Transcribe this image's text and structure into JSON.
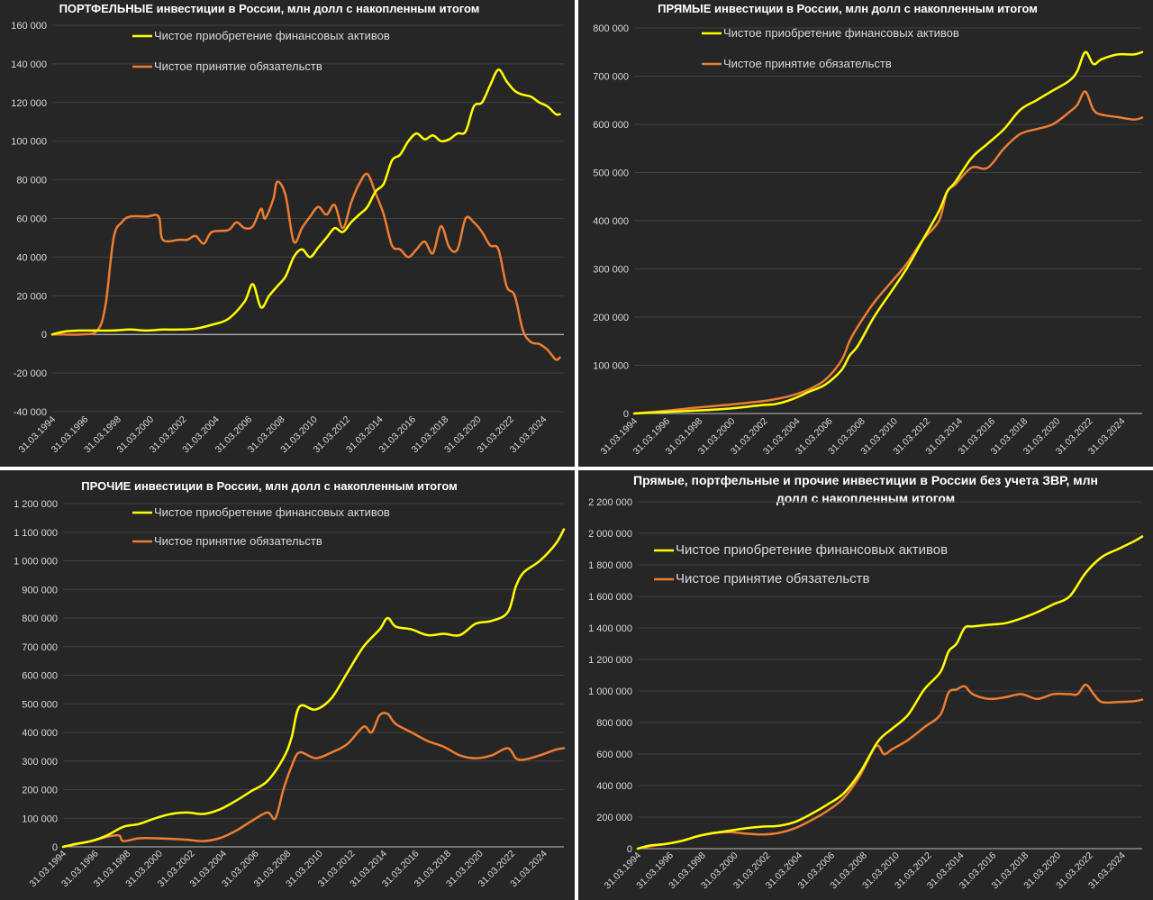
{
  "colors": {
    "background": "#262626",
    "assets_line": "#ffff00",
    "liabilities_line": "#ed7d31",
    "grid": "#404040",
    "axis_text": "#d9d9d9"
  },
  "legend": {
    "assets": "Чистое приобретение финансовых активов",
    "liabilities": "Чистое принятие обязательств"
  },
  "x_tick_labels": [
    "31.03.1994",
    "31.03.1996",
    "31.03.1998",
    "31.03.2000",
    "31.03.2002",
    "31.03.2004",
    "31.03.2006",
    "31.03.2008",
    "31.03.2010",
    "31.03.2012",
    "31.03.2014",
    "31.03.2016",
    "31.03.2018",
    "31.03.2020",
    "31.03.2022",
    "31.03.2024"
  ],
  "chart_data": [
    {
      "type": "line",
      "title": "ПОРТФЕЛЬНЫЕ инвестиции в России, млн долл с накопленным итогом",
      "y_ticks": [
        "-40 000",
        "-20 000",
        "0",
        "20 000",
        "40 000",
        "60 000",
        "80 000",
        "100 000",
        "120 000",
        "140 000",
        "160 000"
      ],
      "ylim": [
        -40000,
        160000
      ],
      "xlim": [
        1994.25,
        2025.5
      ],
      "legend_position": "top",
      "series": [
        {
          "name": "Чистое приобретение финансовых активов",
          "x": [
            1994.25,
            1995,
            1996,
            1997,
            1998,
            1999,
            2000,
            2001,
            2002,
            2003,
            2004,
            2005,
            2006,
            2006.5,
            2007,
            2007.5,
            2008,
            2008.5,
            2009,
            2009.5,
            2010,
            2010.5,
            2011,
            2011.5,
            2012,
            2012.5,
            2013,
            2013.5,
            2014,
            2014.5,
            2015,
            2015.5,
            2016,
            2016.5,
            2017,
            2017.5,
            2018,
            2018.5,
            2019,
            2019.5,
            2020,
            2020.5,
            2021,
            2021.5,
            2022,
            2022.5,
            2023,
            2023.5,
            2024,
            2024.5,
            2025,
            2025.25
          ],
          "values": [
            0,
            1500,
            2000,
            2000,
            2000,
            2500,
            2000,
            2500,
            2500,
            3000,
            5000,
            8000,
            17000,
            26000,
            14000,
            20000,
            25000,
            30000,
            40000,
            44000,
            40000,
            45000,
            50000,
            55000,
            53000,
            58000,
            62000,
            66000,
            74000,
            78000,
            90000,
            93000,
            100000,
            104000,
            101000,
            103000,
            100000,
            101000,
            104000,
            105000,
            118000,
            120000,
            129000,
            137000,
            131000,
            126000,
            124000,
            123000,
            120000,
            118000,
            114000,
            114000
          ]
        },
        {
          "name": "Чистое принятие обязательств",
          "x": [
            1994.25,
            1995,
            1996,
            1997,
            1997.5,
            1998,
            1998.5,
            1999,
            2000,
            2000.75,
            2001,
            2002,
            2002.5,
            2003,
            2003.5,
            2004,
            2005,
            2005.5,
            2006,
            2006.5,
            2007,
            2007.25,
            2007.75,
            2008,
            2008.5,
            2009,
            2009.5,
            2010,
            2010.5,
            2011,
            2011.5,
            2012,
            2012.5,
            2013,
            2013.5,
            2014,
            2014.5,
            2015,
            2015.5,
            2016,
            2016.5,
            2017,
            2017.5,
            2018,
            2018.5,
            2019,
            2019.5,
            2020,
            2020.5,
            2021,
            2021.5,
            2022,
            2022.5,
            2023,
            2023.5,
            2024,
            2024.5,
            2025,
            2025.25
          ],
          "values": [
            0,
            0,
            0,
            2000,
            15000,
            50000,
            58000,
            61000,
            61000,
            61000,
            49000,
            49000,
            49000,
            51000,
            47000,
            53000,
            54000,
            58000,
            55000,
            56000,
            65000,
            60000,
            70000,
            79000,
            72000,
            48000,
            55000,
            61000,
            66000,
            62000,
            67000,
            55000,
            68000,
            78000,
            83000,
            73000,
            62000,
            46000,
            44000,
            40000,
            44000,
            48000,
            42000,
            56000,
            45000,
            44000,
            60000,
            58000,
            53000,
            46000,
            44000,
            25000,
            20000,
            2000,
            -4000,
            -5000,
            -8000,
            -13000,
            -12000
          ]
        }
      ]
    },
    {
      "type": "line",
      "title": "ПРЯМЫЕ инвестиции в России, млн долл с накопленным итогом",
      "y_ticks": [
        "0",
        "100 000",
        "200 000",
        "300 000",
        "400 000",
        "500 000",
        "600 000",
        "700 000",
        "800 000"
      ],
      "ylim": [
        0,
        800000
      ],
      "xlim": [
        1994.25,
        2025.5
      ],
      "legend_position": "top",
      "series": [
        {
          "name": "Чистое приобретение финансовых активов",
          "x": [
            1994.25,
            1996,
            1998,
            2000,
            2002,
            2003,
            2004,
            2005,
            2006,
            2007,
            2007.5,
            2008,
            2009,
            2010,
            2011,
            2012,
            2013,
            2013.5,
            2014,
            2015,
            2016,
            2017,
            2018,
            2019,
            2020,
            2021,
            2021.5,
            2022,
            2022.5,
            2023,
            2024,
            2025,
            2025.5
          ],
          "values": [
            0,
            3000,
            6000,
            10000,
            17000,
            20000,
            30000,
            45000,
            60000,
            90000,
            120000,
            140000,
            200000,
            250000,
            300000,
            360000,
            420000,
            460000,
            480000,
            530000,
            560000,
            590000,
            630000,
            650000,
            670000,
            690000,
            710000,
            750000,
            725000,
            735000,
            745000,
            745000,
            750000
          ]
        },
        {
          "name": "Чистое принятие обязательств",
          "x": [
            1994.25,
            1996,
            1998,
            2000,
            2002,
            2003,
            2004,
            2005,
            2006,
            2007,
            2007.5,
            2008,
            2009,
            2010,
            2011,
            2012,
            2013,
            2013.5,
            2014,
            2015,
            2016,
            2017,
            2018,
            2019,
            2020,
            2021,
            2021.5,
            2022,
            2022.5,
            2023,
            2024,
            2025,
            2025.5
          ],
          "values": [
            0,
            5000,
            12000,
            18000,
            25000,
            30000,
            38000,
            50000,
            70000,
            110000,
            150000,
            180000,
            230000,
            270000,
            310000,
            360000,
            400000,
            460000,
            475000,
            510000,
            510000,
            550000,
            580000,
            590000,
            600000,
            625000,
            640000,
            668000,
            630000,
            620000,
            615000,
            610000,
            614000
          ]
        }
      ]
    },
    {
      "type": "line",
      "title": "ПРОЧИЕ инвестиции в России, млн долл с накопленным итогом",
      "y_ticks": [
        "0",
        "100 000",
        "200 000",
        "300 000",
        "400 000",
        "500 000",
        "600 000",
        "700 000",
        "800 000",
        "900 000",
        "1 000 000",
        "1 100 000",
        "1 200 000"
      ],
      "ylim": [
        0,
        1200000
      ],
      "xlim": [
        1994.25,
        2025.5
      ],
      "legend_position": "top",
      "series": [
        {
          "name": "Чистое приобретение финансовых активов",
          "x": [
            1994.25,
            1995,
            1996,
            1997,
            1998,
            1999,
            2000,
            2001,
            2002,
            2003,
            2004,
            2005,
            2006,
            2007,
            2008,
            2008.5,
            2009,
            2010,
            2011,
            2012,
            2013,
            2014,
            2014.5,
            2015,
            2016,
            2017,
            2018,
            2019,
            2020,
            2021,
            2022,
            2022.5,
            2023,
            2024,
            2025,
            2025.5
          ],
          "values": [
            0,
            10000,
            20000,
            40000,
            70000,
            80000,
            100000,
            115000,
            120000,
            115000,
            130000,
            160000,
            195000,
            230000,
            310000,
            380000,
            490000,
            480000,
            520000,
            610000,
            700000,
            760000,
            800000,
            770000,
            760000,
            740000,
            745000,
            740000,
            780000,
            790000,
            820000,
            910000,
            960000,
            1000000,
            1060000,
            1110000
          ]
        },
        {
          "name": "Чистое принятие обязательств",
          "x": [
            1994.25,
            1995,
            1996,
            1997,
            1997.75,
            1998,
            1999,
            2000,
            2001,
            2002,
            2003,
            2004,
            2005,
            2006,
            2007,
            2007.5,
            2008,
            2008.5,
            2009,
            2010,
            2011,
            2012,
            2013,
            2013.5,
            2014,
            2014.5,
            2015,
            2016,
            2017,
            2018,
            2019,
            2020,
            2021,
            2022,
            2022.5,
            2023,
            2024,
            2025,
            2025.5
          ],
          "values": [
            0,
            8000,
            20000,
            35000,
            40000,
            20000,
            30000,
            30000,
            28000,
            25000,
            20000,
            30000,
            55000,
            90000,
            120000,
            100000,
            200000,
            280000,
            330000,
            310000,
            330000,
            360000,
            420000,
            400000,
            460000,
            465000,
            430000,
            400000,
            370000,
            350000,
            320000,
            310000,
            320000,
            345000,
            310000,
            305000,
            320000,
            340000,
            345000
          ]
        }
      ]
    },
    {
      "type": "line",
      "title": "Прямые, портфельные и прочие инвестиции в России без учета ЗВР, млн долл с накопленным итогом",
      "y_ticks": [
        "0",
        "200 000",
        "400 000",
        "600 000",
        "800 000",
        "1 000 000",
        "1 200 000",
        "1 400 000",
        "1 600 000",
        "1 800 000",
        "2 000 000",
        "2 200 000"
      ],
      "ylim": [
        0,
        2200000
      ],
      "xlim": [
        1994.25,
        2025.5
      ],
      "legend_position": "top-left",
      "series": [
        {
          "name": "Чистое приобретение финансовых активов",
          "x": [
            1994.25,
            1995,
            1996,
            1997,
            1998,
            1999,
            2000,
            2001,
            2002,
            2003,
            2004,
            2005,
            2006,
            2007,
            2008,
            2009,
            2009.5,
            2010,
            2011,
            2012,
            2013,
            2013.5,
            2014,
            2014.5,
            2015,
            2016,
            2017,
            2018,
            2019,
            2020,
            2021,
            2022,
            2023,
            2024,
            2025,
            2025.5
          ],
          "values": [
            0,
            20000,
            30000,
            50000,
            80000,
            100000,
            115000,
            130000,
            140000,
            145000,
            170000,
            220000,
            280000,
            350000,
            480000,
            660000,
            720000,
            760000,
            850000,
            1010000,
            1120000,
            1250000,
            1300000,
            1400000,
            1410000,
            1420000,
            1430000,
            1460000,
            1500000,
            1550000,
            1600000,
            1750000,
            1850000,
            1900000,
            1950000,
            1980000
          ]
        },
        {
          "name": "Чистое принятие обязательств",
          "x": [
            1994.25,
            1995,
            1996,
            1997,
            1998,
            1999,
            2000,
            2001,
            2002,
            2003,
            2004,
            2005,
            2006,
            2007,
            2008,
            2009,
            2009.5,
            2010,
            2011,
            2012,
            2013,
            2013.5,
            2014,
            2014.5,
            2015,
            2016,
            2017,
            2018,
            2019,
            2020,
            2021,
            2021.5,
            2022,
            2022.5,
            2023,
            2024,
            2025,
            2025.5
          ],
          "values": [
            0,
            15000,
            30000,
            50000,
            80000,
            100000,
            105000,
            95000,
            90000,
            100000,
            130000,
            180000,
            240000,
            320000,
            460000,
            650000,
            600000,
            630000,
            690000,
            770000,
            850000,
            990000,
            1010000,
            1030000,
            980000,
            950000,
            960000,
            980000,
            950000,
            980000,
            980000,
            980000,
            1040000,
            980000,
            930000,
            930000,
            935000,
            945000
          ]
        }
      ]
    }
  ]
}
